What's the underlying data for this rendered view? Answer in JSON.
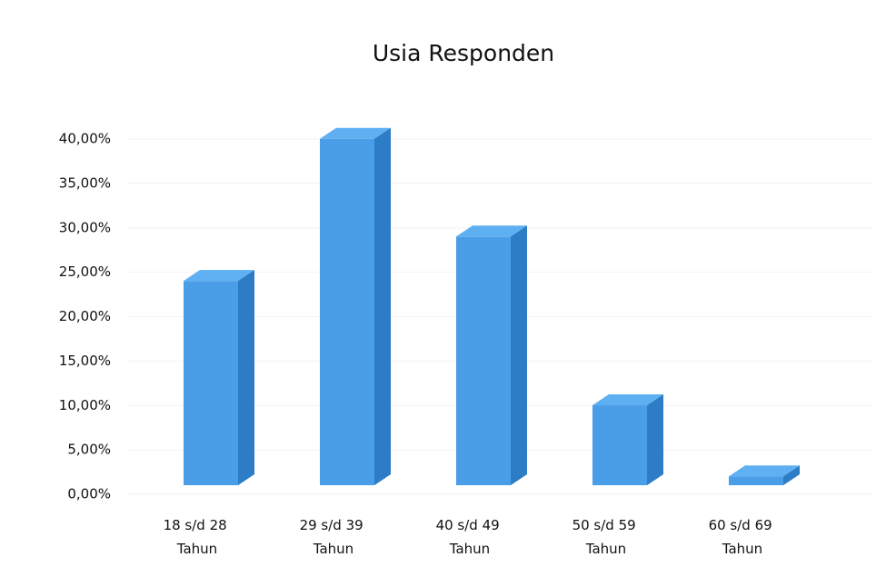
{
  "chart_data": {
    "type": "bar3d",
    "title": "Usia Responden",
    "categories": [
      "18 s/d 28 Tahun",
      "29 s/d 39 Tahun",
      "40 s/d 49 Tahun",
      "50 s/d 59 Tahun",
      "60 s/d 69 Tahun"
    ],
    "values": [
      23,
      39,
      28,
      9,
      1
    ],
    "color": "#4a9ee8",
    "ylim": [
      0,
      40
    ],
    "yticks": [
      {
        "value": 0,
        "label": "0,00%"
      },
      {
        "value": 5,
        "label": "5,00%"
      },
      {
        "value": 10,
        "label": "10,00%"
      },
      {
        "value": 15,
        "label": "15,00%"
      },
      {
        "value": 20,
        "label": "20,00%"
      },
      {
        "value": 25,
        "label": "25,00%"
      },
      {
        "value": 30,
        "label": "30,00%"
      },
      {
        "value": 35,
        "label": "35,00%"
      },
      {
        "value": 40,
        "label": "40,00%"
      }
    ]
  }
}
